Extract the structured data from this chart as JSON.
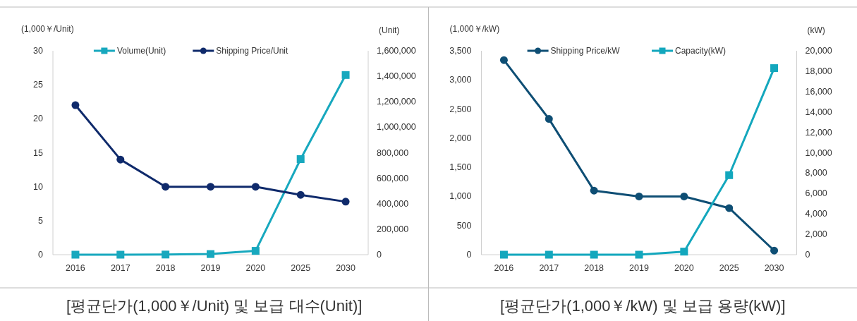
{
  "chart_data": [
    {
      "type": "line",
      "title": "[평균단가(1,000￥/Unit) 및 보급 대수(Unit)]",
      "ylabel": "(1,000￥/Unit)",
      "y2label": "(Unit)",
      "categories": [
        "2016",
        "2017",
        "2018",
        "2019",
        "2020",
        "2025",
        "2030"
      ],
      "legend": "top",
      "ylim": [
        0,
        30
      ],
      "yticks": [
        0,
        5,
        10,
        15,
        20,
        25,
        30
      ],
      "y2lim": [
        0,
        1600000
      ],
      "y2ticks": [
        0,
        {
          "value": 200000,
          "label": "200,000"
        },
        {
          "value": 400000,
          "label": "400,000"
        },
        {
          "value": 600000,
          "label": "600,000"
        },
        {
          "value": 800000,
          "label": "800,000"
        },
        {
          "value": 1000000,
          "label": "1,000,000"
        },
        {
          "value": 1200000,
          "label": "1,200,000"
        },
        {
          "value": 1400000,
          "label": "1,400,000"
        },
        {
          "value": 1600000,
          "label": "1,600,000"
        }
      ],
      "series": [
        {
          "name": "Volume(Unit)",
          "color": "#17a8be",
          "marker": "square",
          "axis": "y2",
          "values": [
            0,
            0,
            1000,
            5000,
            30000,
            750000,
            1410000
          ]
        },
        {
          "name": "Shipping Price/Unit",
          "color": "#0f2a6b",
          "marker": "circle",
          "values": [
            22,
            14,
            10,
            10,
            10,
            8.8,
            7.8
          ]
        }
      ]
    },
    {
      "type": "line",
      "title": "[평균단가(1,000￥/kW) 및 보급 용량(kW)]",
      "ylabel": "(1,000￥/kW)",
      "y2label": "(kW)",
      "categories": [
        "2016",
        "2017",
        "2018",
        "2019",
        "2020",
        "2025",
        "2030"
      ],
      "legend": "top",
      "ylim": [
        0,
        3500
      ],
      "yticks": [
        0,
        500,
        {
          "value": 1000,
          "label": "1,000"
        },
        {
          "value": 1500,
          "label": "1,500"
        },
        {
          "value": 2000,
          "label": "2,000"
        },
        {
          "value": 2500,
          "label": "2,500"
        },
        {
          "value": 3000,
          "label": "3,000"
        },
        {
          "value": 3500,
          "label": "3,500"
        }
      ],
      "y2lim": [
        0,
        20000
      ],
      "y2ticks": [
        0,
        {
          "value": 2000,
          "label": "2,000"
        },
        {
          "value": 4000,
          "label": "4,000"
        },
        {
          "value": 6000,
          "label": "6,000"
        },
        {
          "value": 8000,
          "label": "8,000"
        },
        {
          "value": 10000,
          "label": "10,000"
        },
        {
          "value": 12000,
          "label": "12,000"
        },
        {
          "value": 14000,
          "label": "14,000"
        },
        {
          "value": 16000,
          "label": "16,000"
        },
        {
          "value": 18000,
          "label": "18,000"
        },
        {
          "value": 20000,
          "label": "20,000"
        }
      ],
      "series": [
        {
          "name": "Shipping Price/kW",
          "color": "#0e4e74",
          "marker": "circle",
          "values": [
            3340,
            2330,
            1100,
            1000,
            1000,
            800,
            70
          ]
        },
        {
          "name": "Capacity(kW)",
          "color": "#13a7bd",
          "marker": "square",
          "axis": "y2",
          "values": [
            0,
            0,
            0,
            0,
            300,
            7800,
            18300
          ]
        }
      ]
    }
  ]
}
